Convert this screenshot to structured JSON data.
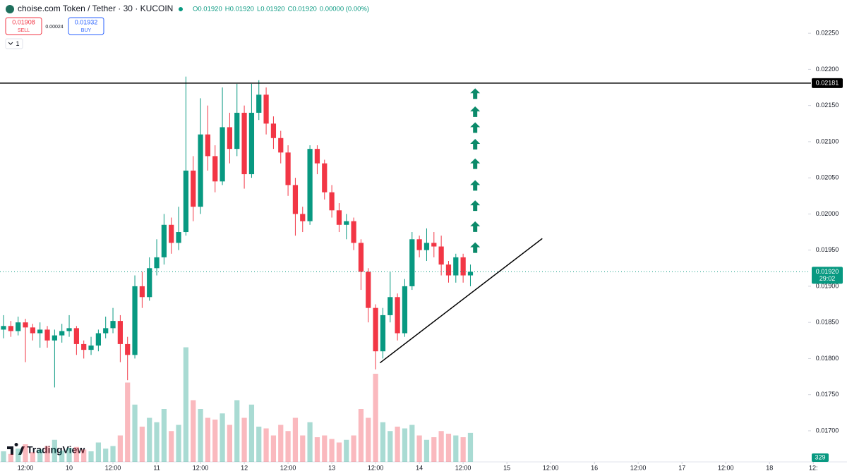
{
  "header": {
    "symbol": "choise.com Token / Tether · 30 · KUCOIN",
    "ohlc": [
      "O0.01920",
      "H0.01920",
      "L0.01920",
      "C0.01920",
      "0.00000 (0.00%)"
    ],
    "sell_price": "0.01908",
    "sell_label": "SELL",
    "spread": "0.00024",
    "buy_price": "0.01932",
    "buy_label": "BUY",
    "indicators": "1"
  },
  "brand": "TradingView",
  "chart_data": {
    "type": "candlestick",
    "x": [
      6,
      8,
      10,
      12,
      14,
      16,
      18,
      20,
      22,
      24,
      26,
      28,
      30,
      32,
      34,
      36,
      38,
      40,
      42,
      44,
      46,
      48,
      50,
      52,
      54,
      56,
      58,
      60,
      62,
      64,
      66,
      68,
      70,
      72,
      74,
      76,
      78,
      80,
      82,
      84,
      86,
      88,
      90,
      92,
      94,
      96,
      98,
      100,
      102,
      104,
      106,
      108,
      110,
      112,
      114,
      116,
      118,
      120,
      122,
      124,
      126,
      128,
      130,
      132,
      134
    ],
    "open": [
      0.0184,
      0.01845,
      0.01838,
      0.0185,
      0.01843,
      0.01835,
      0.0184,
      0.01825,
      0.01832,
      0.01838,
      0.01842,
      0.0182,
      0.01812,
      0.01818,
      0.01835,
      0.01842,
      0.01852,
      0.0182,
      0.01805,
      0.019,
      0.01885,
      0.01925,
      0.0194,
      0.01985,
      0.0196,
      0.01975,
      0.0206,
      0.0201,
      0.0211,
      0.0208,
      0.02045,
      0.0212,
      0.0209,
      0.0214,
      0.02055,
      0.0214,
      0.02165,
      0.02125,
      0.02105,
      0.02085,
      0.0204,
      0.02,
      0.0199,
      0.0209,
      0.0207,
      0.0203,
      0.02005,
      0.01985,
      0.0199,
      0.0196,
      0.0192,
      0.0187,
      0.0181,
      0.0186,
      0.01885,
      0.01835,
      0.019,
      0.01965,
      0.0195,
      0.0196,
      0.01955,
      0.0193,
      0.01915,
      0.0194,
      0.01915
    ],
    "high": [
      0.0186,
      0.01852,
      0.01858,
      0.01855,
      0.01848,
      0.0185,
      0.01845,
      0.0184,
      0.01848,
      0.0186,
      0.01845,
      0.01825,
      0.0183,
      0.0184,
      0.01858,
      0.0187,
      0.0186,
      0.0183,
      0.01915,
      0.0192,
      0.0194,
      0.01965,
      0.02,
      0.01995,
      0.0201,
      0.0219,
      0.0208,
      0.0216,
      0.0215,
      0.02095,
      0.02175,
      0.0214,
      0.0218,
      0.0215,
      0.0218,
      0.02185,
      0.02175,
      0.02135,
      0.02115,
      0.02095,
      0.0205,
      0.0201,
      0.02095,
      0.02095,
      0.02075,
      0.0204,
      0.02015,
      0.02,
      0.01995,
      0.01965,
      0.01925,
      0.01875,
      0.0187,
      0.0192,
      0.0189,
      0.0191,
      0.01975,
      0.0197,
      0.0198,
      0.01975,
      0.0197,
      0.01935,
      0.01945,
      0.01945,
      0.0193
    ],
    "low": [
      0.01828,
      0.0183,
      0.01832,
      0.01795,
      0.01825,
      0.01815,
      0.01815,
      0.0176,
      0.01822,
      0.0183,
      0.01805,
      0.018,
      0.01805,
      0.0181,
      0.01828,
      0.01835,
      0.01795,
      0.0177,
      0.018,
      0.0187,
      0.0188,
      0.01915,
      0.0193,
      0.01945,
      0.0195,
      0.0197,
      0.0199,
      0.02,
      0.0206,
      0.0203,
      0.0204,
      0.0207,
      0.0208,
      0.02035,
      0.0205,
      0.0213,
      0.0211,
      0.0209,
      0.0207,
      0.02025,
      0.0197,
      0.01975,
      0.01985,
      0.02055,
      0.0202,
      0.01995,
      0.01975,
      0.01965,
      0.0195,
      0.01895,
      0.0185,
      0.01785,
      0.018,
      0.0185,
      0.01825,
      0.0183,
      0.01895,
      0.0194,
      0.01935,
      0.0194,
      0.01915,
      0.01905,
      0.01905,
      0.01905,
      0.019
    ],
    "close": [
      0.01845,
      0.01838,
      0.0185,
      0.01843,
      0.01835,
      0.0184,
      0.01825,
      0.01832,
      0.01838,
      0.01842,
      0.0182,
      0.01812,
      0.01818,
      0.01835,
      0.01842,
      0.01852,
      0.0182,
      0.01805,
      0.019,
      0.01885,
      0.01925,
      0.0194,
      0.01985,
      0.0196,
      0.01975,
      0.0206,
      0.0201,
      0.0211,
      0.0208,
      0.02045,
      0.0212,
      0.0209,
      0.0214,
      0.02055,
      0.0214,
      0.02165,
      0.02125,
      0.02105,
      0.02085,
      0.0204,
      0.02,
      0.0199,
      0.0209,
      0.0207,
      0.0203,
      0.02005,
      0.01985,
      0.0199,
      0.0196,
      0.0192,
      0.0187,
      0.0181,
      0.0186,
      0.01885,
      0.01835,
      0.019,
      0.01965,
      0.0195,
      0.0196,
      0.01955,
      0.0193,
      0.01915,
      0.0194,
      0.01915,
      0.0192
    ],
    "volume": {
      "values": [
        120,
        90,
        150,
        200,
        110,
        140,
        180,
        250,
        130,
        160,
        170,
        140,
        120,
        220,
        150,
        180,
        300,
        900,
        650,
        400,
        500,
        450,
        600,
        350,
        420,
        1300,
        700,
        600,
        500,
        480,
        550,
        420,
        700,
        500,
        650,
        400,
        380,
        300,
        420,
        350,
        500,
        300,
        450,
        280,
        300,
        260,
        220,
        250,
        300,
        600,
        500,
        1000,
        450,
        350,
        400,
        380,
        420,
        300,
        250,
        280,
        350,
        320,
        300,
        280,
        329
      ],
      "ylim": [
        0,
        1600
      ]
    },
    "up_color": "#089981",
    "down_color": "#f23645",
    "xlim": [
      5.03,
      226.6
    ],
    "xticks": [
      {
        "value": 12,
        "label": "12:00"
      },
      {
        "value": 24,
        "label": "10"
      },
      {
        "value": 36,
        "label": "12:00"
      },
      {
        "value": 48,
        "label": "11"
      },
      {
        "value": 60,
        "label": "12:00"
      },
      {
        "value": 72,
        "label": "12"
      },
      {
        "value": 84,
        "label": "12:00"
      },
      {
        "value": 96,
        "label": "13"
      },
      {
        "value": 108,
        "label": "12:00"
      },
      {
        "value": 120,
        "label": "14"
      },
      {
        "value": 132,
        "label": "12:00"
      },
      {
        "value": 144,
        "label": "15"
      },
      {
        "value": 156,
        "label": "12:00"
      },
      {
        "value": 168,
        "label": "16"
      },
      {
        "value": 180,
        "label": "12:00"
      },
      {
        "value": 192,
        "label": "17"
      },
      {
        "value": 204,
        "label": "12:00"
      },
      {
        "value": 216,
        "label": "18"
      },
      {
        "value": 228,
        "label": "12:"
      }
    ],
    "ylim": [
      0.01657,
      0.02296
    ],
    "yticks": [
      {
        "value": 0.017,
        "label": "0.01700"
      },
      {
        "value": 0.0175,
        "label": "0.01750"
      },
      {
        "value": 0.018,
        "label": "0.01800"
      },
      {
        "value": 0.0185,
        "label": "0.01850"
      },
      {
        "value": 0.019,
        "label": "0.01900"
      },
      {
        "value": 0.0195,
        "label": "0.01950"
      },
      {
        "value": 0.02,
        "label": "0.02000"
      },
      {
        "value": 0.0205,
        "label": "0.02050"
      },
      {
        "value": 0.021,
        "label": "0.02100"
      },
      {
        "value": 0.0215,
        "label": "0.02150"
      },
      {
        "value": 0.022,
        "label": "0.02200"
      },
      {
        "value": 0.0225,
        "label": "0.02250"
      }
    ],
    "resistance": 0.02181,
    "last_price": {
      "value": 0.0192,
      "label": "0.01920"
    },
    "countdown": "29:02",
    "trendline": {
      "x": [
        109.2,
        153.7
      ],
      "values": [
        0.01794,
        0.01966
      ]
    },
    "arrows": {
      "x": 135.3,
      "values": [
        0.01953,
        0.01982,
        0.02011,
        0.02039,
        0.02069,
        0.02096,
        0.02119,
        0.02141,
        0.02166
      ],
      "color": "#0b8a6a"
    }
  }
}
